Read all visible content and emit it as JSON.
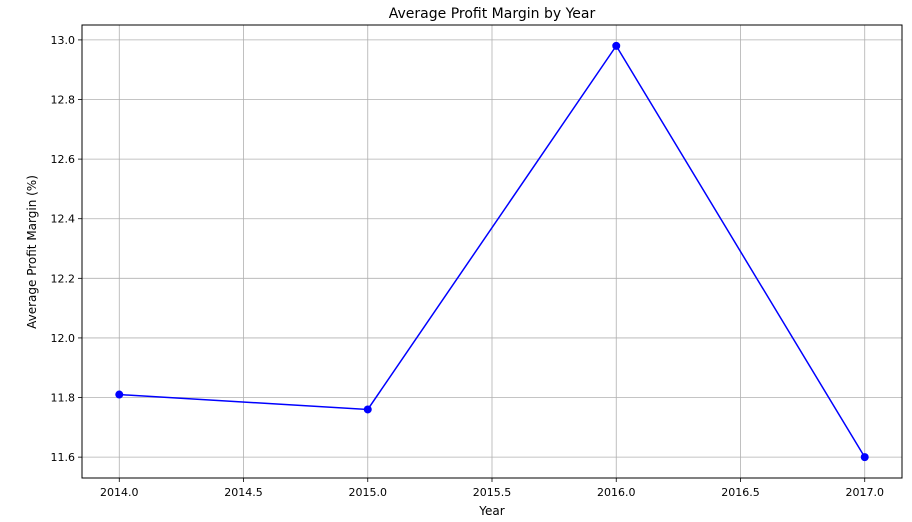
{
  "chart_data": {
    "type": "line",
    "title": "Average Profit Margin by Year",
    "xlabel": "Year",
    "ylabel": "Average Profit Margin (%)",
    "x": [
      2014,
      2015,
      2016,
      2017
    ],
    "y": [
      11.81,
      11.76,
      12.98,
      11.6
    ],
    "series": [
      {
        "values": [
          11.81,
          11.76,
          12.98,
          11.6
        ],
        "color": "#0000ff",
        "marker": "circle"
      }
    ],
    "xticks": [
      "2014.0",
      "2014.5",
      "2015.0",
      "2015.5",
      "2016.0",
      "2016.5",
      "2017.0"
    ],
    "yticks": [
      "11.6",
      "11.8",
      "12.0",
      "12.2",
      "12.4",
      "12.6",
      "12.8",
      "13.0"
    ],
    "xlim": [
      2013.85,
      2017.15
    ],
    "ylim": [
      11.53,
      13.05
    ],
    "grid": true
  }
}
